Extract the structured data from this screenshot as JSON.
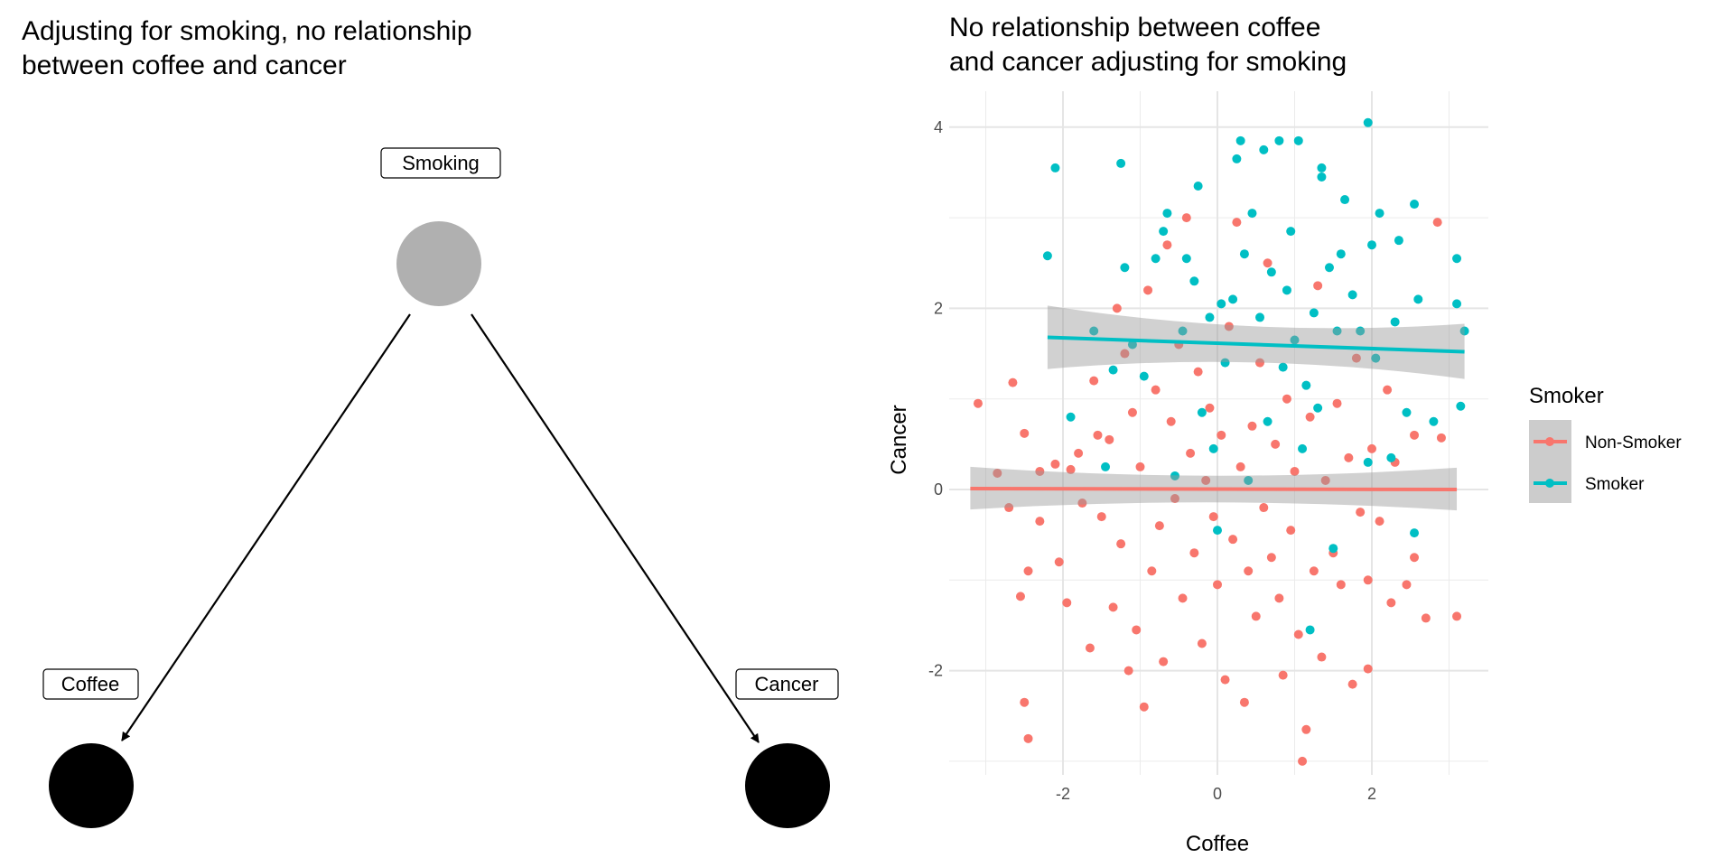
{
  "dag": {
    "title": "Adjusting for smoking, no relationship\nbetween coffee and cancer",
    "nodes": [
      {
        "id": "smoking",
        "label": "Smoking",
        "color": "#B0B0B0"
      },
      {
        "id": "coffee",
        "label": "Coffee",
        "color": "#000000"
      },
      {
        "id": "cancer",
        "label": "Cancer",
        "color": "#000000"
      }
    ],
    "edges": [
      [
        "smoking",
        "coffee"
      ],
      [
        "smoking",
        "cancer"
      ]
    ]
  },
  "chart_data": {
    "type": "scatter",
    "title": "No relationship between coffee\nand cancer adjusting for smoking",
    "xlabel": "Coffee",
    "ylabel": "Cancer",
    "xlim": [
      -3.4,
      3.5
    ],
    "ylim": [
      -3.2,
      4.25
    ],
    "x_ticks": [
      -2,
      0,
      2
    ],
    "y_ticks": [
      -2,
      0,
      2,
      4
    ],
    "x_tick_labels": [
      "-2",
      "0",
      "2"
    ],
    "y_tick_labels": [
      "-2",
      "0",
      "2",
      "4"
    ],
    "grid": true,
    "legend": {
      "title": "Smoker",
      "placement": "right",
      "entries": [
        "Non-Smoker",
        "Smoker"
      ]
    },
    "series": [
      {
        "name": "Non-Smoker",
        "color": "#F8766D",
        "fit": {
          "x": [
            -3.2,
            3.1
          ],
          "y": [
            0.01,
            0.0
          ],
          "ci_low": [
            -0.22,
            -0.23
          ],
          "ci_high": [
            0.25,
            0.24
          ],
          "ci_mid": [
            -0.06,
            0.06
          ]
        },
        "points": [
          [
            -3.1,
            0.95
          ],
          [
            -2.85,
            0.18
          ],
          [
            -2.7,
            -0.2
          ],
          [
            -2.65,
            1.18
          ],
          [
            -2.55,
            -1.18
          ],
          [
            -2.5,
            0.62
          ],
          [
            -2.45,
            -2.75
          ],
          [
            -2.5,
            -2.35
          ],
          [
            -2.45,
            -0.9
          ],
          [
            -2.3,
            0.2
          ],
          [
            -2.3,
            -0.35
          ],
          [
            -2.1,
            0.28
          ],
          [
            -2.05,
            -0.8
          ],
          [
            -1.95,
            -1.25
          ],
          [
            -1.9,
            0.22
          ],
          [
            -1.8,
            0.4
          ],
          [
            -1.75,
            -0.15
          ],
          [
            -1.65,
            -1.75
          ],
          [
            -1.6,
            1.2
          ],
          [
            -1.55,
            0.6
          ],
          [
            -1.5,
            -0.3
          ],
          [
            -1.4,
            0.55
          ],
          [
            -1.35,
            -1.3
          ],
          [
            -1.3,
            2.0
          ],
          [
            -1.25,
            -0.6
          ],
          [
            -1.2,
            1.5
          ],
          [
            -1.15,
            -2.0
          ],
          [
            -1.1,
            0.85
          ],
          [
            -1.05,
            -1.55
          ],
          [
            -1.0,
            0.25
          ],
          [
            -0.95,
            -2.4
          ],
          [
            -0.9,
            2.2
          ],
          [
            -0.85,
            -0.9
          ],
          [
            -0.8,
            1.1
          ],
          [
            -0.75,
            -0.4
          ],
          [
            -0.7,
            -1.9
          ],
          [
            -0.65,
            2.7
          ],
          [
            -0.6,
            0.75
          ],
          [
            -0.55,
            -0.1
          ],
          [
            -0.5,
            1.6
          ],
          [
            -0.45,
            -1.2
          ],
          [
            -0.4,
            3.0
          ],
          [
            -0.35,
            0.4
          ],
          [
            -0.3,
            -0.7
          ],
          [
            -0.25,
            1.3
          ],
          [
            -0.2,
            -1.7
          ],
          [
            -0.15,
            0.1
          ],
          [
            -0.1,
            0.9
          ],
          [
            -0.05,
            -0.3
          ],
          [
            0.0,
            -1.05
          ],
          [
            0.05,
            0.6
          ],
          [
            0.1,
            -2.1
          ],
          [
            0.15,
            1.8
          ],
          [
            0.2,
            -0.55
          ],
          [
            0.25,
            2.95
          ],
          [
            0.3,
            0.25
          ],
          [
            0.35,
            -2.35
          ],
          [
            0.4,
            -0.9
          ],
          [
            0.45,
            0.7
          ],
          [
            0.5,
            -1.4
          ],
          [
            0.55,
            1.4
          ],
          [
            0.6,
            -0.2
          ],
          [
            0.65,
            2.5
          ],
          [
            0.7,
            -0.75
          ],
          [
            0.75,
            0.5
          ],
          [
            0.8,
            -1.2
          ],
          [
            0.85,
            -2.05
          ],
          [
            0.9,
            1.0
          ],
          [
            0.95,
            -0.45
          ],
          [
            1.0,
            0.2
          ],
          [
            1.05,
            -1.6
          ],
          [
            1.1,
            -3.0
          ],
          [
            1.15,
            -2.65
          ],
          [
            1.2,
            0.8
          ],
          [
            1.25,
            -0.9
          ],
          [
            1.3,
            2.25
          ],
          [
            1.35,
            -1.85
          ],
          [
            1.4,
            0.1
          ],
          [
            1.5,
            -0.7
          ],
          [
            1.55,
            0.95
          ],
          [
            1.6,
            -1.05
          ],
          [
            1.7,
            0.35
          ],
          [
            1.75,
            -2.15
          ],
          [
            1.8,
            1.45
          ],
          [
            1.85,
            -0.25
          ],
          [
            1.95,
            -1.0
          ],
          [
            1.95,
            -1.98
          ],
          [
            2.0,
            0.45
          ],
          [
            2.1,
            -0.35
          ],
          [
            2.2,
            1.1
          ],
          [
            2.25,
            -1.25
          ],
          [
            2.3,
            0.3
          ],
          [
            2.45,
            -1.05
          ],
          [
            2.55,
            0.6
          ],
          [
            2.55,
            -0.75
          ],
          [
            2.7,
            -1.42
          ],
          [
            2.85,
            2.95
          ],
          [
            2.9,
            0.57
          ],
          [
            3.1,
            -1.4
          ]
        ]
      },
      {
        "name": "Smoker",
        "color": "#00BFC4",
        "fit": {
          "x": [
            -2.2,
            3.2
          ],
          "y": [
            1.68,
            1.52
          ],
          "ci_low": [
            1.33,
            1.22
          ],
          "ci_high": [
            2.03,
            1.83
          ],
          "ci_mid": [
            1.53,
            1.67
          ]
        },
        "points": [
          [
            -2.2,
            2.58
          ],
          [
            -2.1,
            3.55
          ],
          [
            -1.9,
            0.8
          ],
          [
            -1.6,
            1.75
          ],
          [
            -1.45,
            0.25
          ],
          [
            -1.35,
            1.32
          ],
          [
            -1.25,
            3.6
          ],
          [
            -1.2,
            2.45
          ],
          [
            -1.1,
            1.6
          ],
          [
            -0.95,
            1.25
          ],
          [
            -0.8,
            2.55
          ],
          [
            -0.7,
            2.85
          ],
          [
            -0.65,
            3.05
          ],
          [
            -0.55,
            0.15
          ],
          [
            -0.45,
            1.75
          ],
          [
            -0.4,
            2.55
          ],
          [
            -0.3,
            2.3
          ],
          [
            -0.25,
            3.35
          ],
          [
            -0.2,
            0.85
          ],
          [
            -0.1,
            1.9
          ],
          [
            -0.05,
            0.45
          ],
          [
            0.0,
            -0.45
          ],
          [
            0.05,
            2.05
          ],
          [
            0.1,
            1.4
          ],
          [
            0.2,
            2.1
          ],
          [
            0.25,
            3.65
          ],
          [
            0.3,
            3.85
          ],
          [
            0.35,
            2.6
          ],
          [
            0.4,
            0.1
          ],
          [
            0.45,
            3.05
          ],
          [
            0.55,
            1.9
          ],
          [
            0.6,
            3.75
          ],
          [
            0.65,
            0.75
          ],
          [
            0.7,
            2.4
          ],
          [
            0.8,
            3.85
          ],
          [
            0.85,
            1.35
          ],
          [
            0.9,
            2.2
          ],
          [
            0.95,
            2.85
          ],
          [
            1.0,
            1.65
          ],
          [
            1.05,
            3.85
          ],
          [
            1.1,
            0.45
          ],
          [
            1.15,
            1.15
          ],
          [
            1.2,
            -1.55
          ],
          [
            1.25,
            1.95
          ],
          [
            1.3,
            0.9
          ],
          [
            1.35,
            3.55
          ],
          [
            1.35,
            3.45
          ],
          [
            1.45,
            2.45
          ],
          [
            1.5,
            -0.65
          ],
          [
            1.55,
            1.75
          ],
          [
            1.6,
            2.6
          ],
          [
            1.65,
            3.2
          ],
          [
            1.75,
            2.15
          ],
          [
            1.85,
            1.75
          ],
          [
            1.95,
            4.05
          ],
          [
            1.95,
            0.3
          ],
          [
            2.0,
            2.7
          ],
          [
            2.05,
            1.45
          ],
          [
            2.1,
            3.05
          ],
          [
            2.25,
            0.35
          ],
          [
            2.3,
            1.85
          ],
          [
            2.35,
            2.75
          ],
          [
            2.45,
            0.85
          ],
          [
            2.55,
            3.15
          ],
          [
            2.55,
            -0.48
          ],
          [
            2.6,
            2.1
          ],
          [
            2.8,
            0.75
          ],
          [
            3.1,
            2.55
          ],
          [
            3.1,
            2.05
          ],
          [
            3.15,
            0.92
          ],
          [
            3.2,
            1.75
          ]
        ]
      }
    ]
  }
}
